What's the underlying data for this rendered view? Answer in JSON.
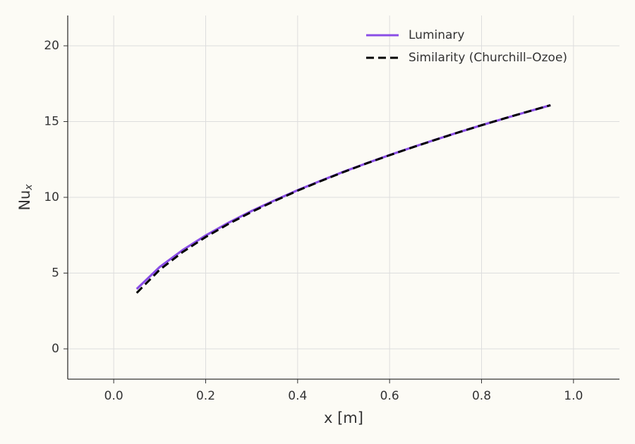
{
  "chart_data": {
    "type": "line",
    "xlabel": "x [m]",
    "ylabel": "Nu",
    "ylabel_sub": "x",
    "x": [
      0.05,
      0.1,
      0.15,
      0.2,
      0.25,
      0.3,
      0.35,
      0.4,
      0.45,
      0.5,
      0.55,
      0.6,
      0.65,
      0.7,
      0.75,
      0.8,
      0.85,
      0.9,
      0.95
    ],
    "series": [
      {
        "name": "Luminary",
        "color": "#8a4de6",
        "dash": false,
        "values": [
          3.95,
          5.4,
          6.52,
          7.48,
          8.33,
          9.1,
          9.8,
          10.47,
          11.09,
          11.69,
          12.25,
          12.79,
          13.31,
          13.81,
          14.29,
          14.76,
          15.21,
          15.65,
          16.08
        ]
      },
      {
        "name": "Similarity (Churchill–Ozoe)",
        "color": "#000000",
        "dash": true,
        "values": [
          3.69,
          5.22,
          6.39,
          7.38,
          8.25,
          9.04,
          9.76,
          10.44,
          11.07,
          11.67,
          12.24,
          12.78,
          13.3,
          13.8,
          14.29,
          14.76,
          15.21,
          15.65,
          16.08
        ]
      }
    ],
    "xlim": [
      -0.1,
      1.1
    ],
    "ylim": [
      -2,
      22
    ],
    "xticks": [
      {
        "value": 0,
        "label": "0.0"
      },
      0.2,
      0.4,
      0.6,
      0.8,
      {
        "value": 1,
        "label": "1.0"
      }
    ],
    "yticks": [
      0,
      5,
      10,
      15,
      20
    ],
    "grid": true,
    "legend": "upper right"
  }
}
